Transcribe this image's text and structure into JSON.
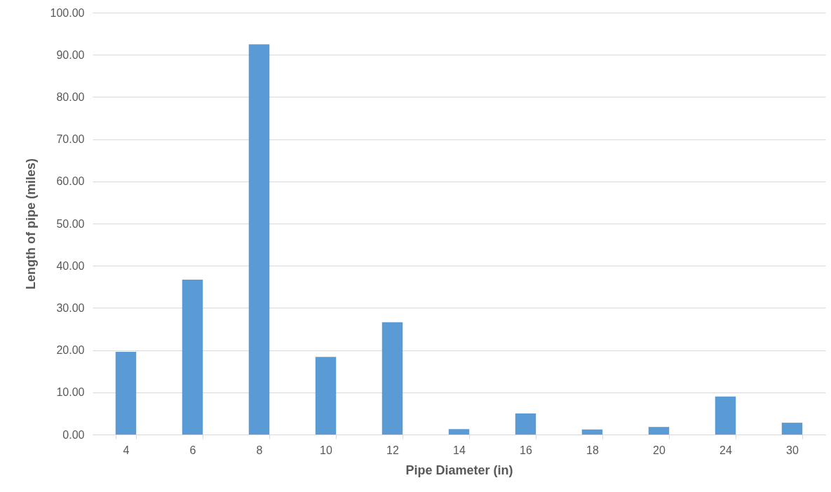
{
  "chart_data": {
    "type": "bar",
    "xlabel": "Pipe Diameter (in)",
    "ylabel": "Length of pipe (miles)",
    "categories": [
      "4",
      "6",
      "8",
      "10",
      "12",
      "14",
      "16",
      "18",
      "20",
      "24",
      "30"
    ],
    "values": [
      19.6,
      36.7,
      92.5,
      18.4,
      26.6,
      1.3,
      5.0,
      1.2,
      1.8,
      9.0,
      2.8
    ],
    "color": "#5b9bd5",
    "ylim": [
      0,
      100
    ],
    "yticks": [
      {
        "value": 0,
        "label": "0.00"
      },
      {
        "value": 10,
        "label": "10.00"
      },
      {
        "value": 20,
        "label": "20.00"
      },
      {
        "value": 30,
        "label": "30.00"
      },
      {
        "value": 40,
        "label": "40.00"
      },
      {
        "value": 50,
        "label": "50.00"
      },
      {
        "value": 60,
        "label": "60.00"
      },
      {
        "value": 70,
        "label": "70.00"
      },
      {
        "value": 80,
        "label": "80.00"
      },
      {
        "value": 90,
        "label": "90.00"
      },
      {
        "value": 100,
        "label": "100.00"
      }
    ],
    "grid": "y"
  }
}
